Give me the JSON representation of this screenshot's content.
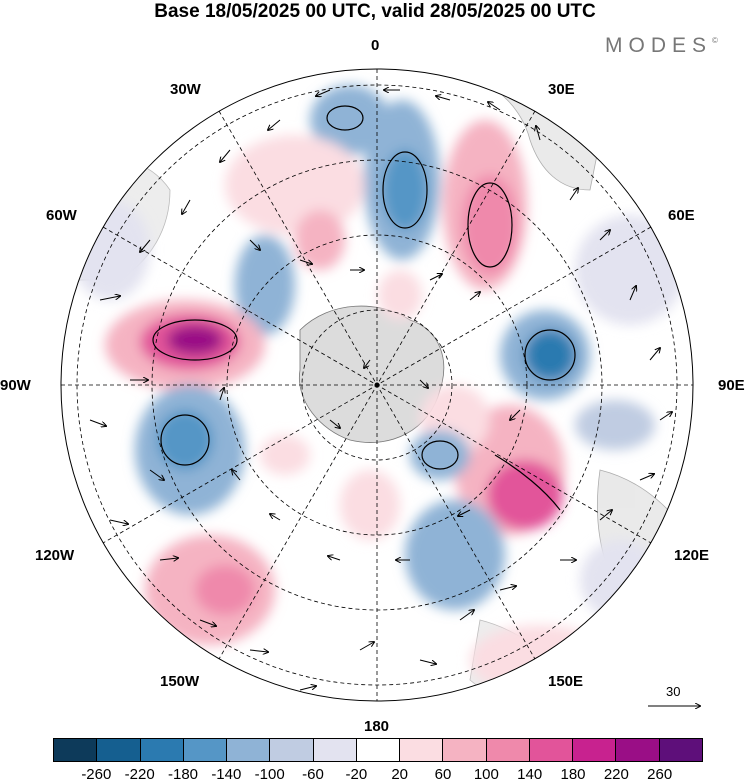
{
  "header": {
    "title": "Base 18/05/2025 00 UTC, valid 28/05/2025 00 UTC",
    "brand": "MODES",
    "brand_mark": "©"
  },
  "map": {
    "projection": "south polar stereographic",
    "longitude_labels": {
      "top": "0",
      "top_right": "30E",
      "right_upper": "60E",
      "right": "90E",
      "right_lower": "120E",
      "bottom_right": "150E",
      "bottom": "180",
      "bottom_left": "150W",
      "left_lower": "120W",
      "left": "90W",
      "left_upper": "60W",
      "top_left": "30W"
    },
    "vector_scale_label": "30",
    "colors": {
      "strong_negative": "#2a6ea6",
      "negative": "#6f9fcc",
      "weak_negative": "#c7cfe4",
      "positive": "#f2b8c4",
      "strong_positive": "#e0588f",
      "extreme_positive": "#9e0d8c",
      "land": "#dcdcdc"
    }
  },
  "colorbar": {
    "colors": [
      "#0d3a5a",
      "#155f90",
      "#2b7ab0",
      "#5596c6",
      "#8fb3d6",
      "#c0cce2",
      "#e3e3f0",
      "#ffffff",
      "#fbdde2",
      "#f5b3c2",
      "#ef89ab",
      "#e2549a",
      "#c8228f",
      "#9a0e86",
      "#5e0f7a"
    ],
    "tick_labels": [
      "-260",
      "-220",
      "-180",
      "-140",
      "-100",
      "-60",
      "-20",
      "20",
      "60",
      "100",
      "140",
      "180",
      "220",
      "260"
    ]
  }
}
